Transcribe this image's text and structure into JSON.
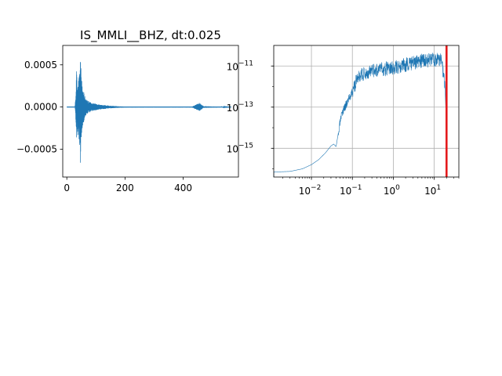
{
  "figure": {
    "background": "#ffffff",
    "line_color": "#1f77b4",
    "marker_color": "#e41a1c"
  },
  "chart_data": [
    {
      "type": "line",
      "title": "IS_MMLI__BHZ, dt:0.025",
      "xlabel": "",
      "ylabel": "",
      "xlim": [
        -14,
        590
      ],
      "ylim": [
        -0.00083,
        0.00073
      ],
      "grid": false,
      "x_ticks": [
        {
          "value": 0,
          "label": "0"
        },
        {
          "value": 200,
          "label": "200"
        },
        {
          "value": 400,
          "label": "400"
        }
      ],
      "y_ticks": [
        {
          "value": 0.0005,
          "label": "0.0005"
        },
        {
          "value": 0.0,
          "label": "0.0000"
        },
        {
          "value": -0.0005,
          "label": "−0.0005"
        }
      ],
      "series": [
        {
          "sample_interval": 0.025,
          "envelope": [
            {
              "x": 0,
              "upper": 0.0,
              "lower": 0.0
            },
            {
              "x": 28,
              "upper": 0.0,
              "lower": 0.0
            },
            {
              "x": 31,
              "upper": 0.00018,
              "lower": -0.00016
            },
            {
              "x": 33,
              "upper": 0.00045,
              "lower": -0.0004
            },
            {
              "x": 36,
              "upper": 0.0003,
              "lower": -0.0003
            },
            {
              "x": 40,
              "upper": 0.00032,
              "lower": -0.00036
            },
            {
              "x": 44,
              "upper": 0.0004,
              "lower": -0.00055
            },
            {
              "x": 47,
              "upper": 0.00063,
              "lower": -0.00077
            },
            {
              "x": 50,
              "upper": 0.00035,
              "lower": -0.00033
            },
            {
              "x": 55,
              "upper": 0.00022,
              "lower": -0.00022
            },
            {
              "x": 62,
              "upper": 0.00013,
              "lower": -0.00013
            },
            {
              "x": 70,
              "upper": 8e-05,
              "lower": -8e-05
            },
            {
              "x": 85,
              "upper": 5e-05,
              "lower": -5e-05
            },
            {
              "x": 110,
              "upper": 3e-05,
              "lower": -3e-05
            },
            {
              "x": 150,
              "upper": 1.5e-05,
              "lower": -1.5e-05
            },
            {
              "x": 200,
              "upper": 5e-06,
              "lower": -5e-06
            },
            {
              "x": 430,
              "upper": 4e-06,
              "lower": -4e-06
            },
            {
              "x": 445,
              "upper": 3e-05,
              "lower": -3e-05
            },
            {
              "x": 455,
              "upper": 5e-05,
              "lower": -5e-05
            },
            {
              "x": 470,
              "upper": 1e-05,
              "lower": -1e-05
            },
            {
              "x": 565,
              "upper": 0.0,
              "lower": 0.0
            }
          ]
        }
      ]
    },
    {
      "type": "line",
      "title": "",
      "xlabel": "",
      "ylabel": "",
      "xscale": "log",
      "yscale": "log",
      "xlim": [
        0.0012,
        40
      ],
      "ylim": [
        4e-17,
        1e-10
      ],
      "grid": true,
      "x_ticks": [
        {
          "value": 0.01,
          "label": "10",
          "exponent": "−2"
        },
        {
          "value": 0.1,
          "label": "10",
          "exponent": "−1"
        },
        {
          "value": 1,
          "label": "10",
          "exponent": "0"
        },
        {
          "value": 10,
          "label": "10",
          "exponent": "1"
        }
      ],
      "y_ticks": [
        {
          "value": 1e-11,
          "label": "10",
          "exponent": "−11"
        },
        {
          "value": 1e-13,
          "label": "10",
          "exponent": "−13"
        },
        {
          "value": 1e-15,
          "label": "10",
          "exponent": "−15"
        }
      ],
      "series": [
        {
          "points": [
            {
              "x": 0.0012,
              "y": 7e-17
            },
            {
              "x": 0.003,
              "y": 7.5e-17
            },
            {
              "x": 0.006,
              "y": 1e-16
            },
            {
              "x": 0.01,
              "y": 1.6e-16
            },
            {
              "x": 0.015,
              "y": 2.8e-16
            },
            {
              "x": 0.022,
              "y": 6e-16
            },
            {
              "x": 0.03,
              "y": 1.3e-15
            },
            {
              "x": 0.035,
              "y": 1.6e-15
            },
            {
              "x": 0.04,
              "y": 1.2e-15
            },
            {
              "x": 0.045,
              "y": 5e-15
            },
            {
              "x": 0.05,
              "y": 3e-14
            },
            {
              "x": 0.06,
              "y": 1.2e-13
            },
            {
              "x": 0.08,
              "y": 4e-13
            },
            {
              "x": 0.1,
              "y": 1e-12
            },
            {
              "x": 0.13,
              "y": 6e-12
            },
            {
              "x": 0.2,
              "y": 1e-11
            },
            {
              "x": 0.3,
              "y": 1.3e-11
            },
            {
              "x": 0.5,
              "y": 1.5e-11
            },
            {
              "x": 1,
              "y": 1.8e-11
            },
            {
              "x": 2,
              "y": 2.5e-11
            },
            {
              "x": 5,
              "y": 4e-11
            },
            {
              "x": 10,
              "y": 4.5e-11
            },
            {
              "x": 15,
              "y": 5e-11
            },
            {
              "x": 18,
              "y": 3e-12
            },
            {
              "x": 19.5,
              "y": 3e-14
            },
            {
              "x": 20,
              "y": 4e-17
            }
          ]
        }
      ],
      "vline": {
        "x": 20,
        "color": "#e41a1c"
      }
    }
  ]
}
